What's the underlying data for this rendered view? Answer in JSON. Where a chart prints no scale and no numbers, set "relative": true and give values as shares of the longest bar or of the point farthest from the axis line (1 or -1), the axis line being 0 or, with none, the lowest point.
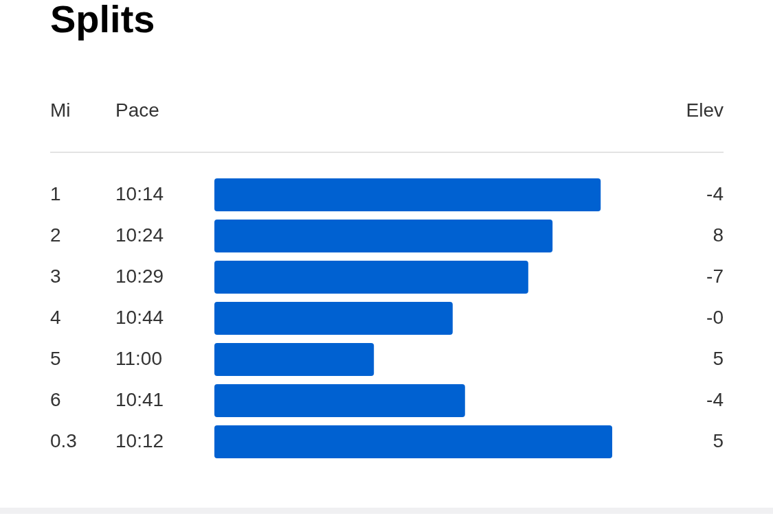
{
  "chart_data": {
    "type": "bar",
    "orientation": "horizontal",
    "relative": true,
    "title": "Splits",
    "ylabel": "Mi",
    "xlabel": "Pace",
    "y2label": "Elev",
    "categories": [
      "1",
      "2",
      "3",
      "4",
      "5",
      "6",
      "0.3"
    ],
    "values": [
      0.971,
      0.85,
      0.789,
      0.599,
      0.401,
      0.63,
      1
    ],
    "color": "#0061d1",
    "annotations": [
      "10:14",
      "10:24",
      "10:29",
      "10:44",
      "11:00",
      "10:41",
      "10:12",
      "-4",
      "8",
      "-7",
      "-0",
      "5",
      "-4",
      "5"
    ],
    "grid": false,
    "legend": false
  }
}
